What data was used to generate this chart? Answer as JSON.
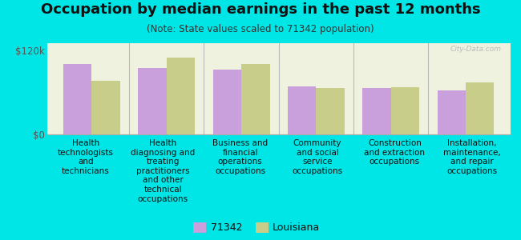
{
  "title": "Occupation by median earnings in the past 12 months",
  "subtitle": "(Note: State values scaled to 71342 population)",
  "categories": [
    "Health\ntechnologists\nand\ntechnicians",
    "Health\ndiagnosing and\ntreating\npractitioners\nand other\ntechnical\noccupations",
    "Business and\nfinancial\noperations\noccupations",
    "Community\nand social\nservice\noccupations",
    "Construction\nand extraction\noccupations",
    "Installation,\nmaintenance,\nand repair\noccupations"
  ],
  "values_71342": [
    100000,
    95000,
    92000,
    68000,
    66000,
    63000
  ],
  "values_louisiana": [
    76000,
    110000,
    100000,
    66000,
    67000,
    74000
  ],
  "color_71342": "#c9a0dc",
  "color_louisiana": "#c8cd8a",
  "bar_width": 0.38,
  "ylim": [
    0,
    130000
  ],
  "yticks": [
    0,
    120000
  ],
  "ytick_labels": [
    "$0",
    "$120k"
  ],
  "background_color": "#eef2de",
  "outer_background": "#00e5e5",
  "legend_label_71342": "71342",
  "legend_label_louisiana": "Louisiana",
  "watermark": "City-Data.com",
  "title_fontsize": 13,
  "subtitle_fontsize": 8.5,
  "tick_label_fontsize": 7.5
}
